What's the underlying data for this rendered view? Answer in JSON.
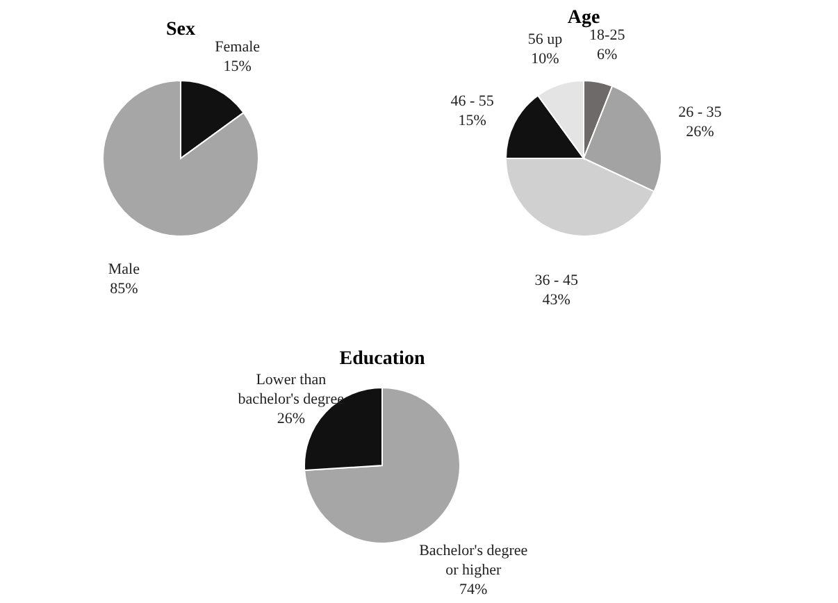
{
  "chart_data": [
    {
      "type": "pie",
      "title": "Sex",
      "categories": [
        "Female",
        "Male"
      ],
      "values": [
        15,
        85
      ],
      "value_labels": [
        "15%",
        "85%"
      ],
      "colors": [
        "#111111",
        "#a6a6a6"
      ]
    },
    {
      "type": "pie",
      "title": "Age",
      "categories": [
        "18-25",
        "26 - 35",
        "36 - 45",
        "46 - 55",
        "56 up"
      ],
      "values": [
        6,
        26,
        43,
        15,
        10
      ],
      "value_labels": [
        "6%",
        "26%",
        "43%",
        "15%",
        "10%"
      ],
      "colors": [
        "#6f6a6a",
        "#a3a3a3",
        "#d0d0d0",
        "#111111",
        "#e4e4e4"
      ]
    },
    {
      "type": "pie",
      "title": "Education",
      "categories": [
        "Bachelor's degree or higher",
        "Lower than bachelor's degree"
      ],
      "values": [
        74,
        26
      ],
      "value_labels": [
        "74%",
        "26%"
      ],
      "colors": [
        "#a6a6a6",
        "#111111"
      ]
    }
  ]
}
